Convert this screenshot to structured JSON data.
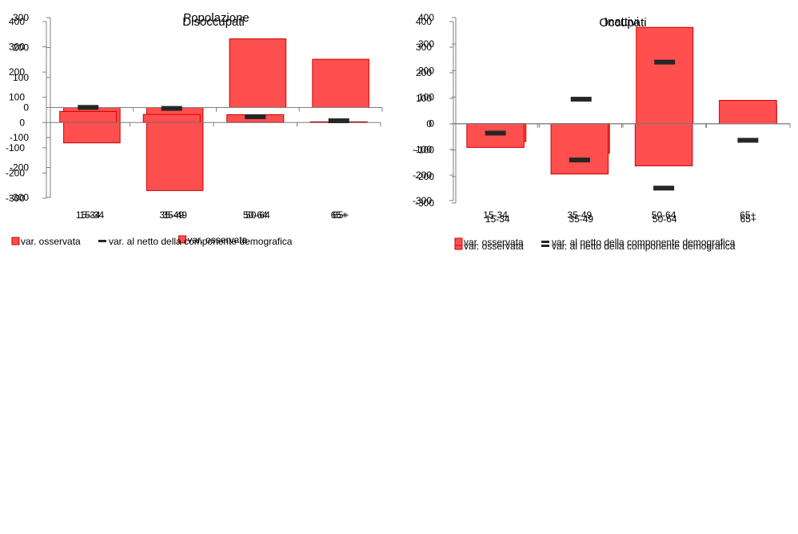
{
  "legend_labels": {
    "observed": "var. osservata",
    "net": "var. al netto della componente demografica"
  },
  "colors": {
    "bar_fill": "#ff4f4f",
    "bar_stroke": "#cc0000",
    "marker": "#262626",
    "axis": "#7f7f7f"
  },
  "chart_data": [
    {
      "type": "bar",
      "title": "Popolazione",
      "categories": [
        "15-34",
        "35-49",
        "50-64",
        "65+"
      ],
      "ylim": [
        -300,
        300
      ],
      "yticks": [
        300,
        200,
        100,
        0,
        -100,
        -200,
        -300
      ],
      "grid": false,
      "legend_position": "bottom",
      "series": [
        {
          "name": "var. osservata",
          "kind": "bar",
          "values": [
            -118,
            -277,
            229,
            161
          ]
        }
      ]
    },
    {
      "type": "bar",
      "title": "Occupati",
      "categories": [
        "15-34",
        "35-49",
        "50-64",
        "65+"
      ],
      "ylim": [
        -300,
        400
      ],
      "yticks": [
        400,
        300,
        200,
        100,
        0,
        -100,
        -200,
        -300
      ],
      "grid": false,
      "legend_position": "bottom",
      "series": [
        {
          "name": "var. osservata",
          "kind": "bar",
          "values": [
            -68,
            -112,
            363,
            68
          ]
        },
        {
          "name": "var. al netto della componente demografica",
          "kind": "marker",
          "values": [
            -20,
            92,
            232,
            63
          ]
        }
      ]
    },
    {
      "type": "bar",
      "title": "Disoccupati",
      "categories": [
        "15-34",
        "35-49",
        "50-64",
        "65+"
      ],
      "ylim": [
        -300,
        400
      ],
      "yticks": [
        400,
        300,
        200,
        100,
        0,
        -100,
        -200,
        -300
      ],
      "grid": false,
      "legend_position": "bottom",
      "series": [
        {
          "name": "var. osservata",
          "kind": "bar",
          "values": [
            44,
            32,
            31,
            3
          ]
        },
        {
          "name": "var. al netto della componente demografica",
          "kind": "marker",
          "values": [
            60,
            56,
            23,
            7
          ]
        }
      ]
    },
    {
      "type": "bar",
      "title": "Inattivi",
      "categories": [
        "15-34",
        "35-49",
        "50-64",
        "65+"
      ],
      "ylim": [
        -300,
        400
      ],
      "yticks": [
        400,
        300,
        200,
        100,
        0,
        -100,
        -200,
        -300
      ],
      "grid": false,
      "legend_position": "bottom",
      "series": [
        {
          "name": "var. osservata",
          "kind": "bar",
          "values": [
            -92,
            -196,
            -164,
            92
          ]
        },
        {
          "name": "var. al netto della componente demografica",
          "kind": "marker",
          "values": [
            -36,
            -141,
            -251,
            -64
          ]
        }
      ]
    }
  ]
}
